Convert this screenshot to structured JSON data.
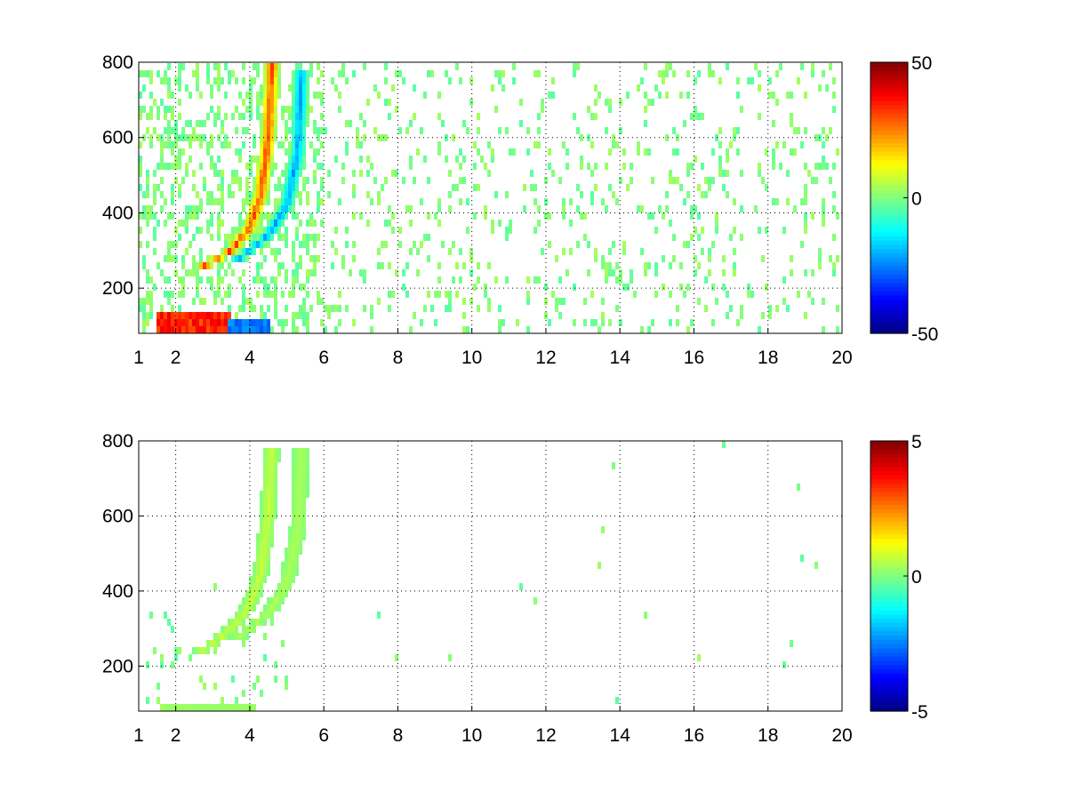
{
  "chart_data": [
    {
      "type": "heatmap",
      "title": "",
      "xlabel": "",
      "ylabel": "",
      "xlim": [
        1,
        20
      ],
      "ylim": [
        80,
        800
      ],
      "xticks": [
        1,
        2,
        4,
        6,
        8,
        10,
        12,
        14,
        16,
        18,
        20
      ],
      "xtick_labels": [
        "1",
        "2",
        "4",
        "6",
        "8",
        "10",
        "12",
        "14",
        "16",
        "18",
        "20"
      ],
      "yticks": [
        200,
        400,
        600,
        800
      ],
      "ytick_labels": [
        "200",
        "400",
        "600",
        "800"
      ],
      "grid": true,
      "colormap": "jet",
      "clim": [
        -50,
        50
      ],
      "colorbar_ticks": [
        50,
        0,
        -50
      ],
      "colorbar_labels": [
        "50",
        "0",
        "-50"
      ],
      "features": [
        {
          "kind": "positive-ridge",
          "x": [
            2.6,
            3.0,
            3.5,
            4.0,
            4.3,
            4.5,
            4.6
          ],
          "y": [
            250,
            270,
            300,
            360,
            450,
            600,
            790
          ],
          "value": 35
        },
        {
          "kind": "negative-ridge",
          "x": [
            3.6,
            4.0,
            4.5,
            5.0,
            5.3,
            5.4
          ],
          "y": [
            270,
            300,
            340,
            420,
            560,
            780
          ],
          "value": -25
        },
        {
          "kind": "band",
          "x": [
            1.5,
            3.5
          ],
          "y": [
            80,
            130
          ],
          "value": 40
        },
        {
          "kind": "band",
          "x": [
            3.4,
            4.6
          ],
          "y": [
            80,
            110
          ],
          "value": -30
        }
      ],
      "noise_level": 4
    },
    {
      "type": "heatmap",
      "title": "",
      "xlabel": "",
      "ylabel": "",
      "xlim": [
        1,
        20
      ],
      "ylim": [
        80,
        800
      ],
      "xticks": [
        1,
        2,
        4,
        6,
        8,
        10,
        12,
        14,
        16,
        18,
        20
      ],
      "xtick_labels": [
        "1",
        "2",
        "4",
        "6",
        "8",
        "10",
        "12",
        "14",
        "16",
        "18",
        "20"
      ],
      "yticks": [
        200,
        400,
        600,
        800
      ],
      "ytick_labels": [
        "200",
        "400",
        "600",
        "800"
      ],
      "grid": true,
      "colormap": "jet",
      "clim": [
        -5,
        5
      ],
      "colorbar_ticks": [
        5,
        0,
        -5
      ],
      "colorbar_labels": [
        "5",
        "0",
        "-5"
      ],
      "features": [
        {
          "kind": "ridge",
          "x": [
            2.7,
            3.0,
            3.5,
            4.0,
            4.3,
            4.5,
            4.6
          ],
          "y": [
            240,
            260,
            300,
            360,
            450,
            600,
            790
          ],
          "value": 0.8
        },
        {
          "kind": "ridge",
          "x": [
            3.6,
            4.0,
            4.5,
            5.0,
            5.3,
            5.4
          ],
          "y": [
            270,
            300,
            340,
            420,
            560,
            780
          ],
          "value": 0.5
        },
        {
          "kind": "band",
          "x": [
            1.7,
            4.2
          ],
          "y": [
            80,
            100
          ],
          "value": 0.3
        }
      ],
      "noise_level": 0.4
    }
  ]
}
